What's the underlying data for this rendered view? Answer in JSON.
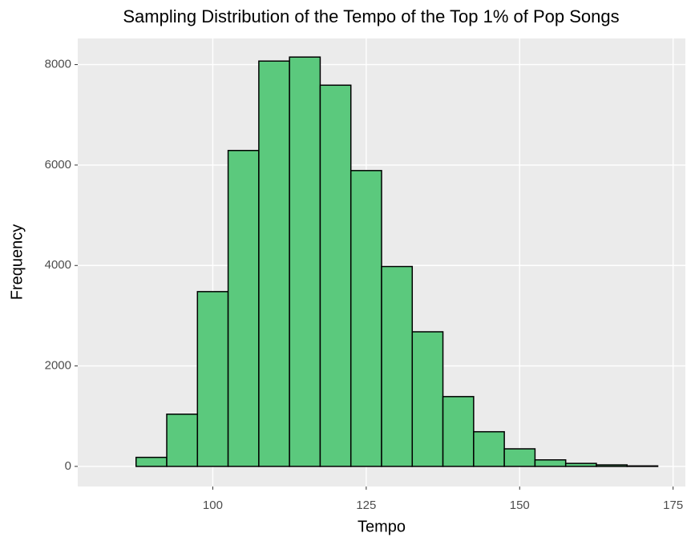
{
  "chart_data": {
    "type": "histogram",
    "title": "Sampling Distribution of the Tempo of the Top 1% of Pop Songs",
    "x_label": "Tempo",
    "y_label": "Frequency",
    "bins": [
      82.5,
      87.5,
      92.5,
      97.5,
      102.5,
      107.5,
      112.5,
      117.5,
      122.5,
      127.5,
      132.5,
      137.5,
      142.5,
      147.5,
      152.5,
      157.5,
      162.5,
      167.5,
      172.5
    ],
    "counts": [
      0,
      180,
      1040,
      3480,
      6290,
      8070,
      8150,
      7590,
      5890,
      3980,
      2680,
      1390,
      690,
      350,
      130,
      60,
      30,
      10
    ],
    "color": "#5BC97D",
    "edge_color": "#000000",
    "xlim": [
      78,
      177
    ],
    "ylim": [
      -400,
      8520
    ],
    "xticks": [
      100,
      125,
      150,
      175
    ],
    "yticks": [
      0,
      2000,
      4000,
      6000,
      8000
    ],
    "grid": true
  }
}
